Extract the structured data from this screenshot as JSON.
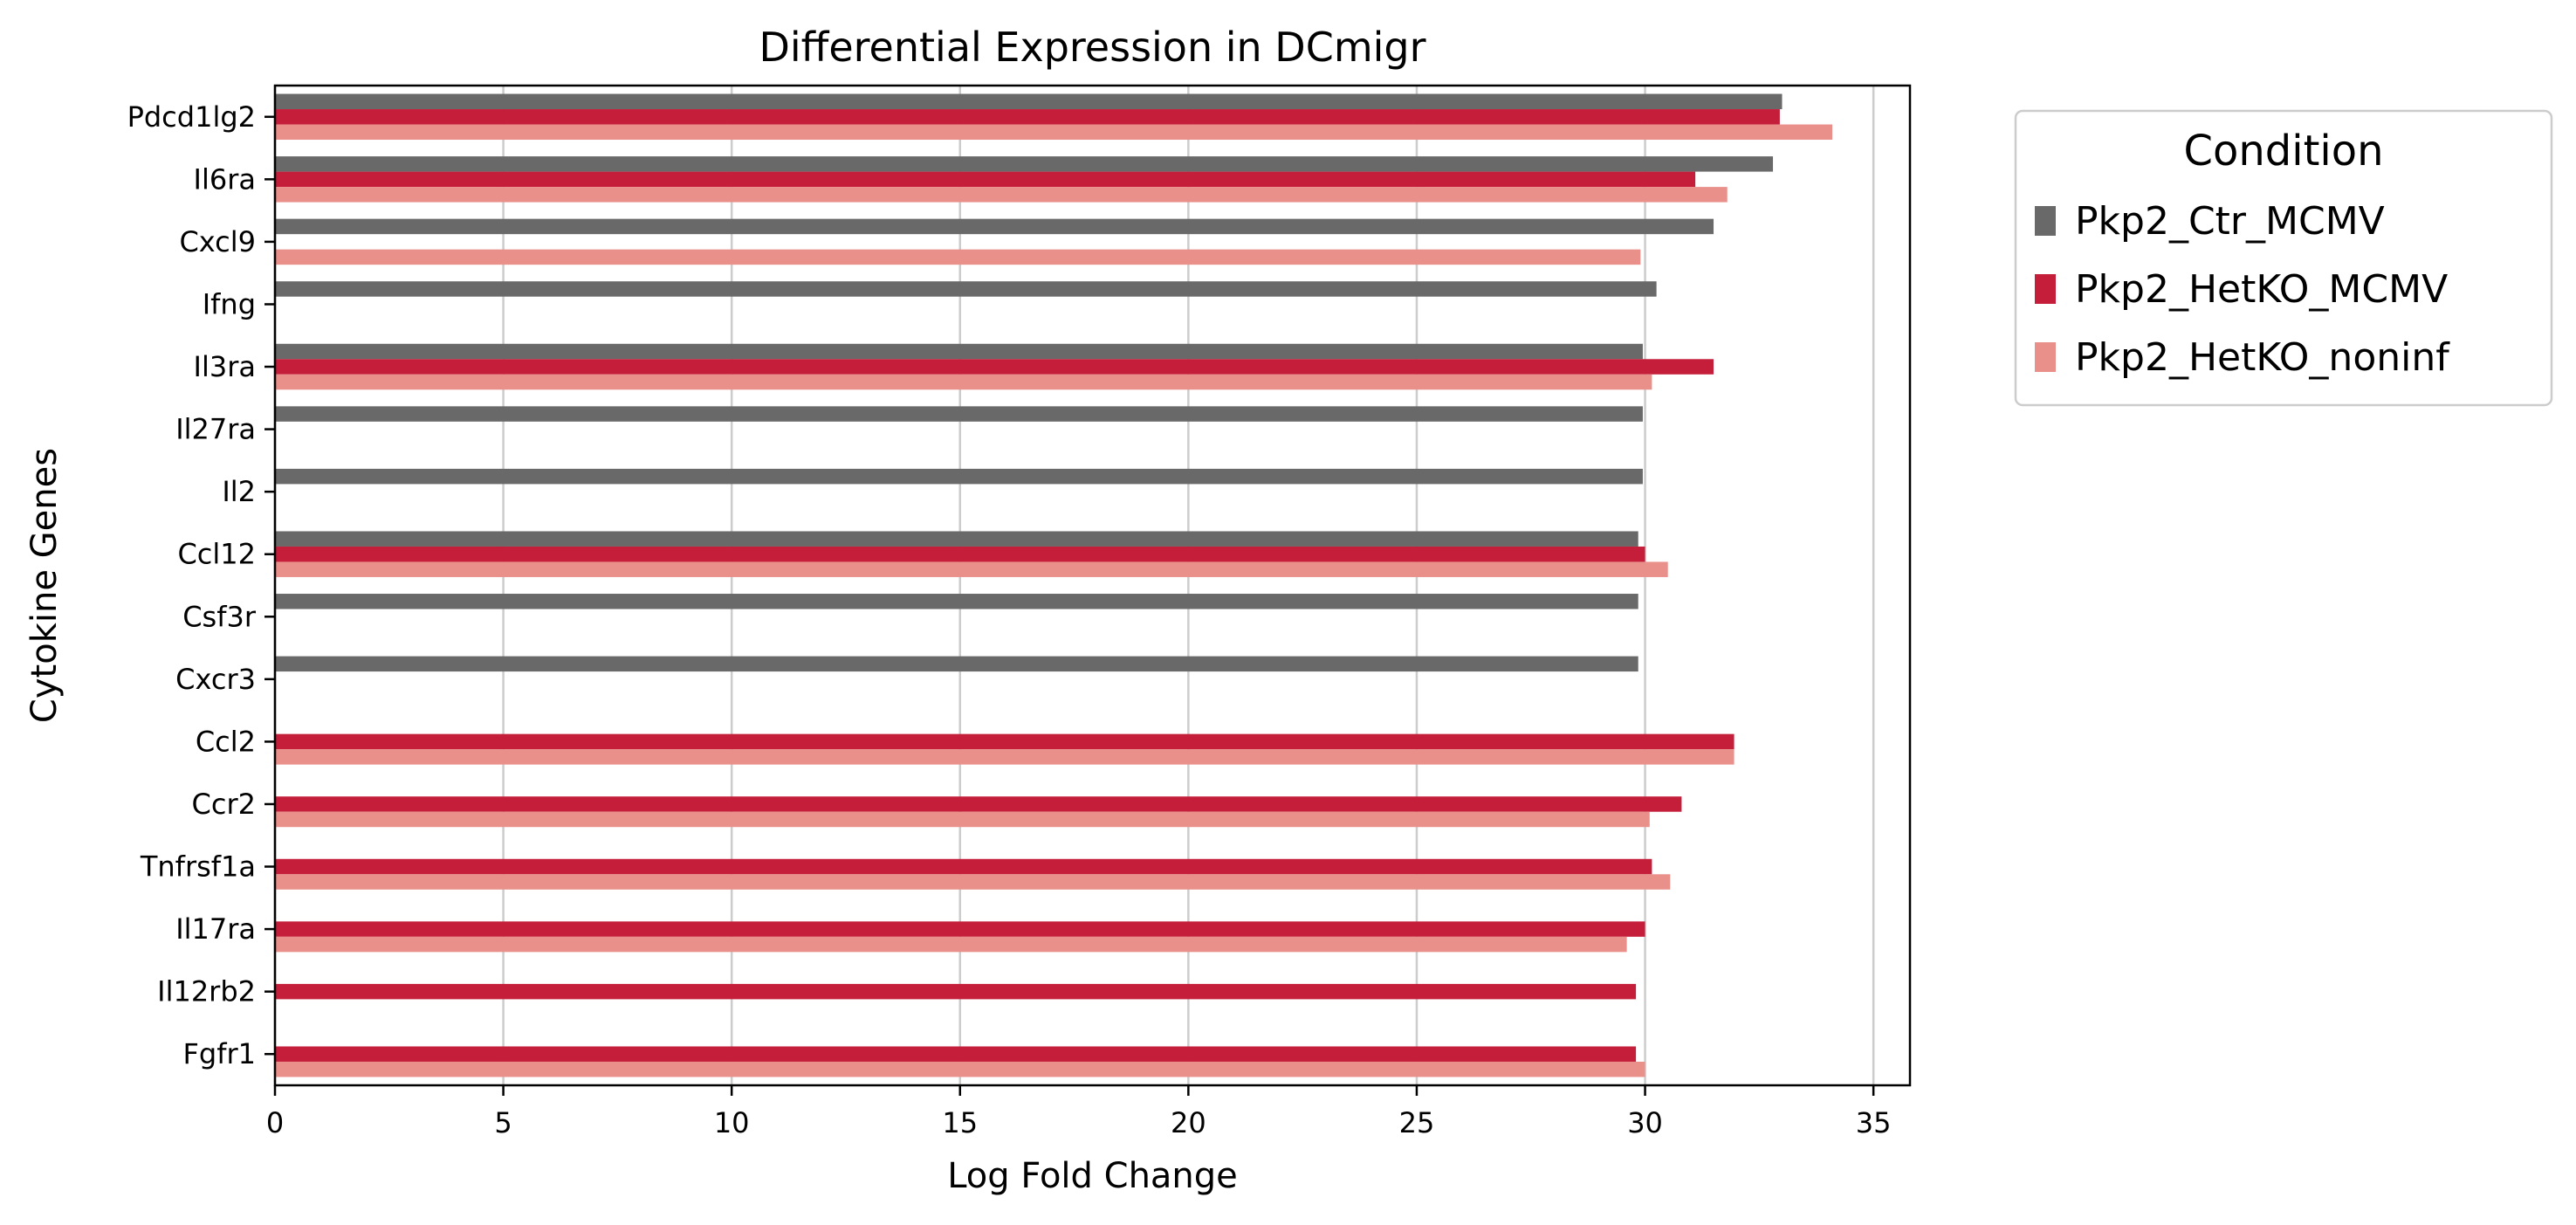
{
  "chart_data": {
    "type": "bar",
    "orientation": "horizontal",
    "title": "Differential Expression in DCmigr",
    "xlabel": "Log Fold Change",
    "ylabel": "Cytokine Genes",
    "xlim": [
      0,
      35.8
    ],
    "xticks": [
      0,
      5,
      10,
      15,
      20,
      25,
      30,
      35
    ],
    "grid": "vertical",
    "legend": {
      "title": "Condition",
      "placement": "outside-top-right"
    },
    "categories": [
      "Pdcd1lg2",
      "Il6ra",
      "Cxcl9",
      "Ifng",
      "Il3ra",
      "Il27ra",
      "Il2",
      "Ccl12",
      "Csf3r",
      "Cxcr3",
      "Ccl2",
      "Ccr2",
      "Tnfrsf1a",
      "Il17ra",
      "Il12rb2",
      "Fgfr1"
    ],
    "series": [
      {
        "name": "Pkp2_Ctr_MCMV",
        "color": "#696969",
        "values": [
          33.0,
          32.8,
          31.5,
          30.25,
          29.95,
          29.95,
          29.95,
          29.85,
          29.85,
          29.85,
          null,
          null,
          null,
          null,
          null,
          null
        ]
      },
      {
        "name": "Pkp2_HetKO_MCMV",
        "color": "#c41e3a",
        "values": [
          32.95,
          31.1,
          null,
          null,
          31.5,
          null,
          null,
          30.0,
          null,
          null,
          31.95,
          30.8,
          30.15,
          30.0,
          29.8,
          29.8
        ]
      },
      {
        "name": "Pkp2_HetKO_noninf",
        "color": "#ea908b",
        "values": [
          34.1,
          31.8,
          29.9,
          null,
          30.15,
          null,
          null,
          30.5,
          null,
          null,
          31.95,
          30.1,
          30.55,
          29.6,
          null,
          30.0
        ]
      }
    ]
  }
}
